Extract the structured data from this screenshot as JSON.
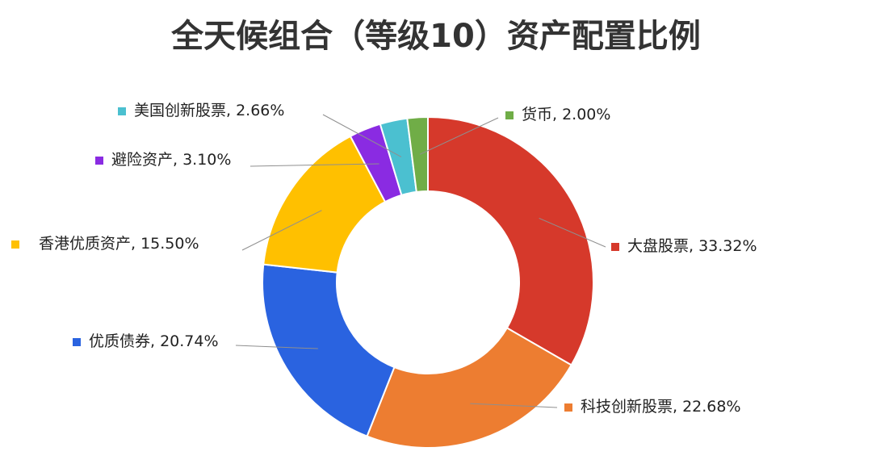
{
  "chart_data": {
    "type": "pie",
    "variant": "donut",
    "title": "全天候组合（等级10）资产配置比例",
    "start_angle_deg": 0,
    "direction": "clockwise",
    "slices": [
      {
        "label": "大盘股票",
        "value": 33.32,
        "display": "33.32%",
        "color": "#D6392B",
        "label_side": "right"
      },
      {
        "label": "科技创新股票",
        "value": 22.68,
        "display": "22.68%",
        "color": "#ED7D31",
        "label_side": "right"
      },
      {
        "label": "优质债券",
        "value": 20.74,
        "display": "20.74%",
        "color": "#2A63E0",
        "label_side": "left"
      },
      {
        "label": "香港优质资产",
        "value": 15.5,
        "display": "15.50%",
        "color": "#FFC000",
        "label_side": "left"
      },
      {
        "label": "避险资产",
        "value": 3.1,
        "display": "3.10%",
        "color": "#8A2BE2",
        "label_side": "left"
      },
      {
        "label": "美国创新股票",
        "value": 2.66,
        "display": "2.66%",
        "color": "#4BC0D0",
        "label_side": "left"
      },
      {
        "label": "货币",
        "value": 2.0,
        "display": "2.00%",
        "color": "#70AD47",
        "label_side": "right"
      }
    ]
  }
}
